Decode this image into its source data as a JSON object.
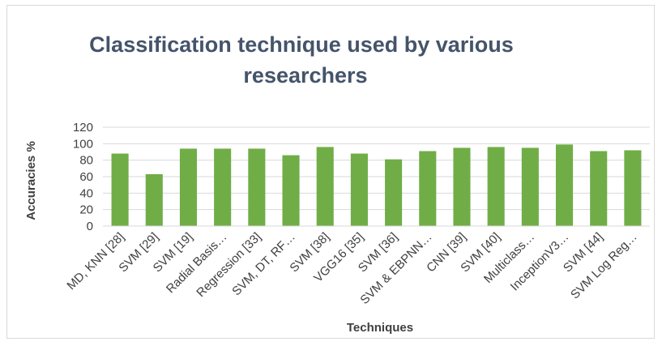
{
  "chart_data": {
    "type": "bar",
    "title_lines": [
      "Classification technique used by various",
      "researchers"
    ],
    "xlabel": "Techniques",
    "ylabel": "Accuracies %",
    "ylim": [
      0,
      120
    ],
    "yticks": [
      0,
      20,
      40,
      60,
      80,
      100,
      120
    ],
    "grid": true,
    "legend": "none",
    "bar_color": "#70ad47",
    "categories": [
      "MD, KNN [28]",
      "SVM [29]",
      "SVM [19]",
      "Radial Basis…",
      "Regression [33]",
      "SVM, DT, RF…",
      "SVM [38]",
      "VGG16 [35]",
      "SVM [36]",
      "SVM & EBPNN…",
      "CNN [39]",
      "SVM [40]",
      "Multiclass…",
      "InceptionV3…",
      "SVM [44]",
      "SVM Log Reg…"
    ],
    "values": [
      88,
      63,
      94,
      94,
      94,
      86,
      96,
      88,
      81,
      91,
      95,
      96,
      95,
      99,
      91,
      92
    ]
  }
}
